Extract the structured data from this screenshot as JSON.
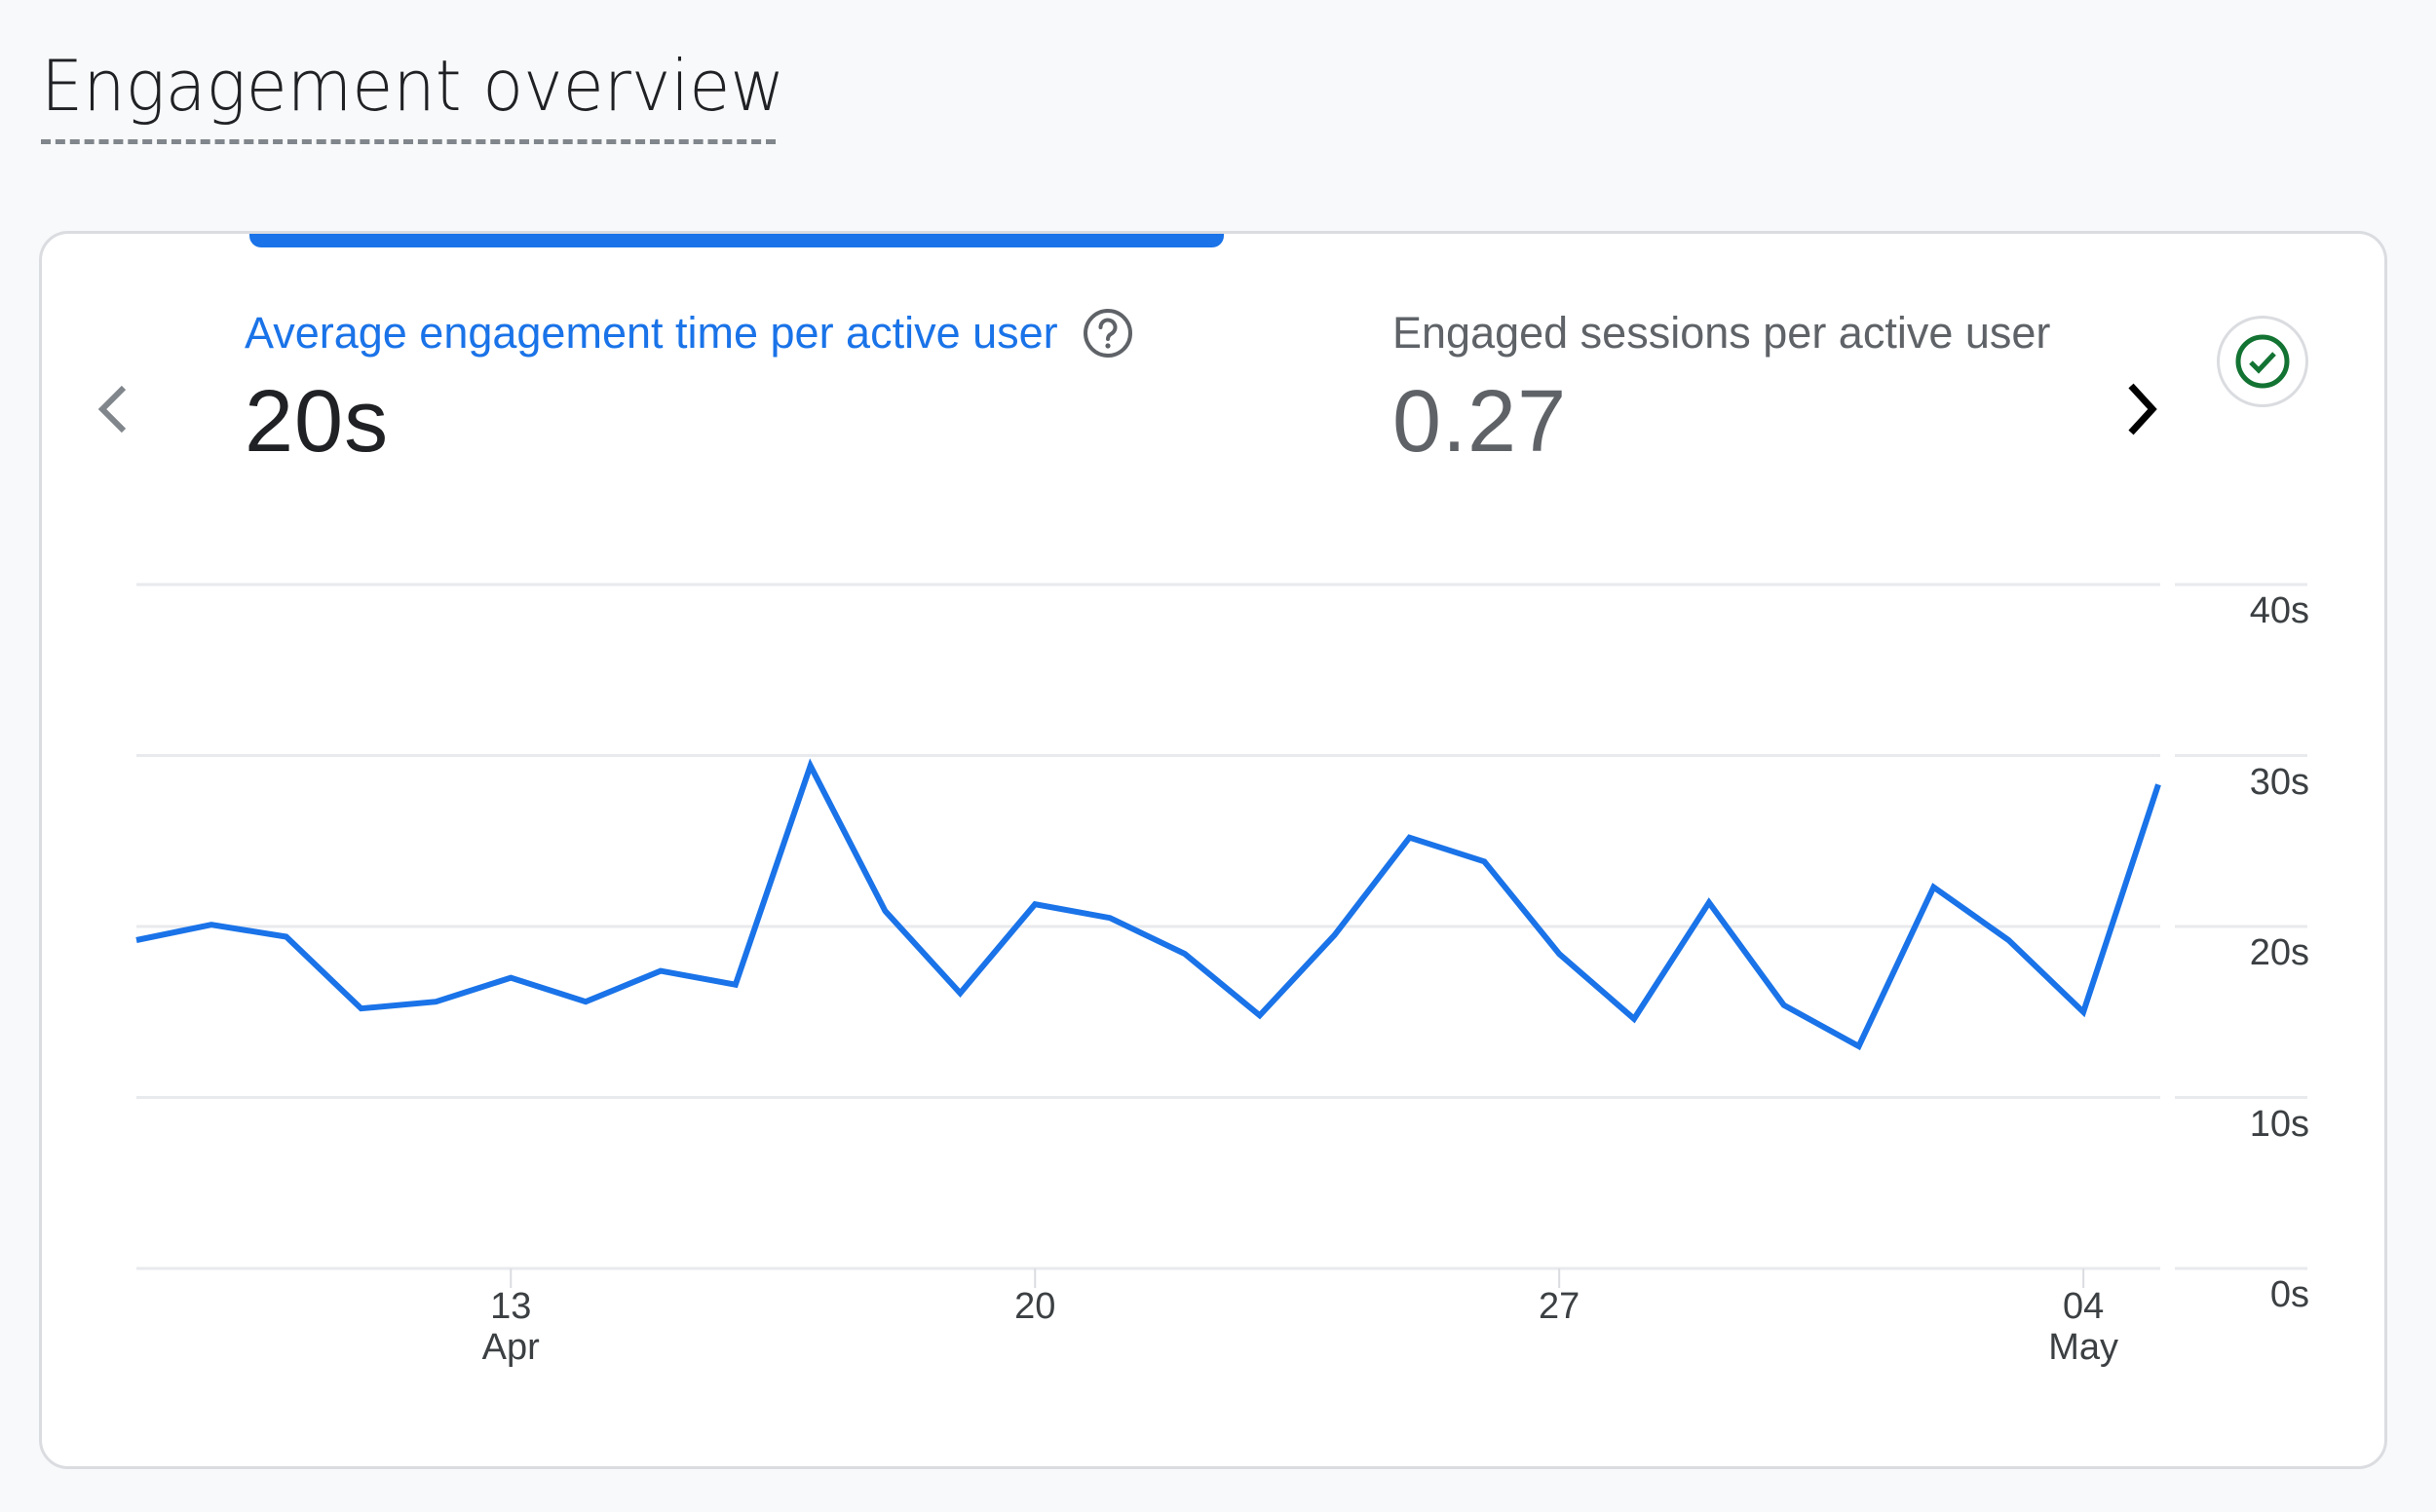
{
  "header": {
    "title": "Engagement overview"
  },
  "card": {
    "metrics": [
      {
        "label": "Average engagement time per active user",
        "value": "20s",
        "active": true,
        "help_icon": "help-circle-icon"
      },
      {
        "label": "Engaged sessions per active user",
        "value": "0.27",
        "active": false
      }
    ],
    "nav": {
      "prev_icon": "chevron-left-icon",
      "next_icon": "chevron-right-icon"
    },
    "status_icon": "check-circle-icon",
    "colors": {
      "accent": "#1a73e8",
      "line": "#1a73e8",
      "status_green": "#137333",
      "grid": "#e8eaed",
      "label_muted": "#5f6368"
    }
  },
  "chart_data": {
    "type": "line",
    "title": "Average engagement time per active user",
    "xlabel": "",
    "ylabel": "",
    "ylim": [
      0,
      40
    ],
    "y_ticks": [
      "0s",
      "10s",
      "20s",
      "30s",
      "40s"
    ],
    "y_axis_position": "right",
    "grid": true,
    "x_ticks": [
      {
        "label": "13",
        "sublabel": "Apr",
        "index": 5
      },
      {
        "label": "20",
        "sublabel": "",
        "index": 12
      },
      {
        "label": "27",
        "sublabel": "",
        "index": 19
      },
      {
        "label": "04",
        "sublabel": "May",
        "index": 26
      }
    ],
    "x": [
      "Apr 8",
      "Apr 9",
      "Apr 10",
      "Apr 11",
      "Apr 12",
      "Apr 13",
      "Apr 14",
      "Apr 15",
      "Apr 16",
      "Apr 17",
      "Apr 18",
      "Apr 19",
      "Apr 20",
      "Apr 21",
      "Apr 22",
      "Apr 23",
      "Apr 24",
      "Apr 25",
      "Apr 26",
      "Apr 27",
      "Apr 28",
      "Apr 29",
      "Apr 30",
      "May 1",
      "May 2",
      "May 3",
      "May 4",
      "May 5"
    ],
    "series": [
      {
        "name": "Average engagement time per active user",
        "unit": "s",
        "values": [
          19.2,
          20.1,
          19.4,
          15.2,
          15.6,
          17.0,
          15.6,
          17.4,
          16.6,
          29.4,
          20.9,
          16.1,
          21.3,
          20.5,
          18.4,
          14.8,
          19.5,
          25.2,
          23.8,
          18.4,
          14.6,
          21.4,
          15.4,
          13.0,
          22.3,
          19.2,
          15.0,
          28.3
        ]
      }
    ]
  }
}
